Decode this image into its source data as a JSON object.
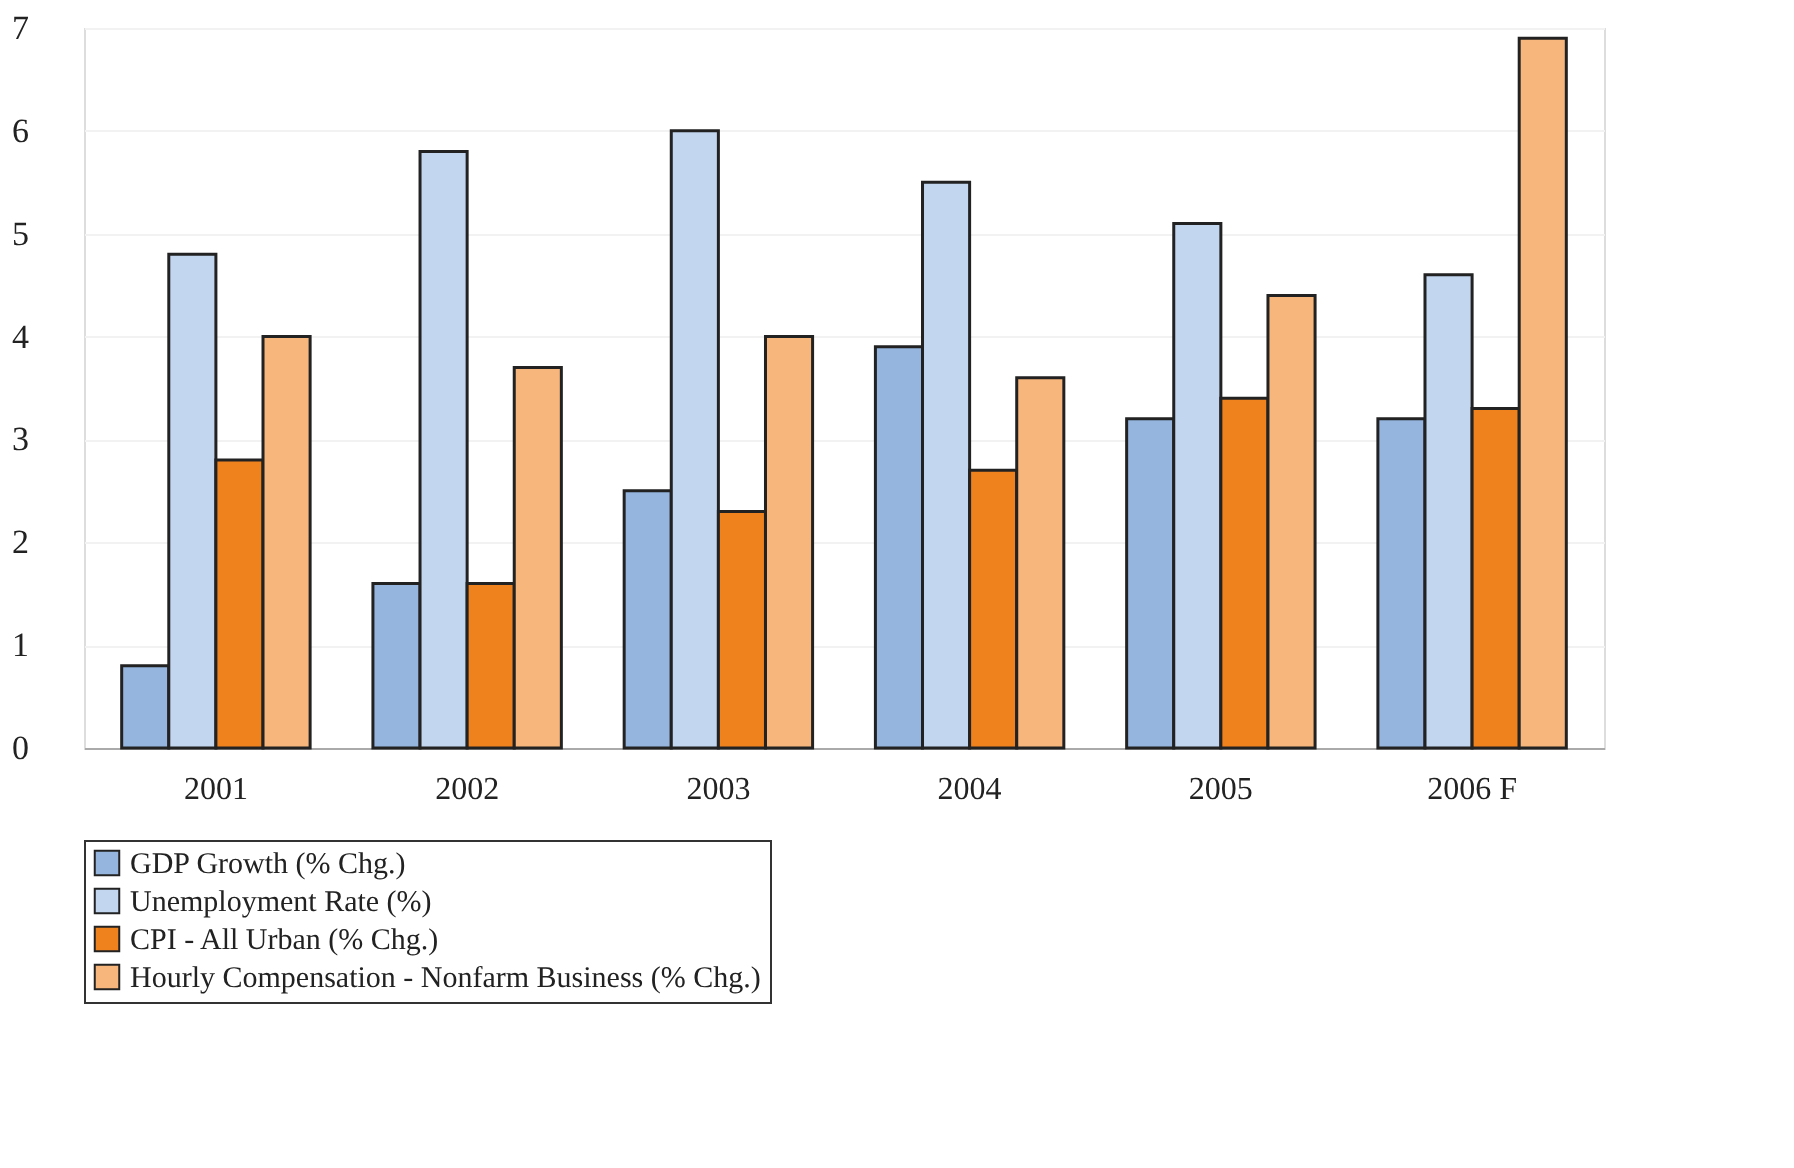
{
  "chart_data": {
    "type": "bar",
    "categories": [
      "2001",
      "2002",
      "2003",
      "2004",
      "2005",
      "2006 F"
    ],
    "series": [
      {
        "name": "GDP Growth (% Chg.)",
        "color": "#95b4de",
        "values": [
          0.8,
          1.6,
          2.5,
          3.9,
          3.2,
          3.2
        ]
      },
      {
        "name": "Unemployment Rate (%)",
        "color": "#c3d6f0",
        "values": [
          4.8,
          5.8,
          6.0,
          5.5,
          5.1,
          4.6
        ]
      },
      {
        "name": "CPI - All Urban (% Chg.)",
        "color": "#f0821e",
        "values": [
          2.8,
          1.6,
          2.3,
          2.7,
          3.4,
          3.3
        ]
      },
      {
        "name": "Hourly Compensation - Nonfarm Business (% Chg.)",
        "color": "#f7b67c",
        "values": [
          4.0,
          3.7,
          4.0,
          3.6,
          4.4,
          6.9
        ]
      }
    ],
    "ylim": [
      0,
      7
    ],
    "yticks": [
      0,
      1,
      2,
      3,
      4,
      5,
      6,
      7
    ],
    "grid": "y",
    "legend": "bottom"
  }
}
